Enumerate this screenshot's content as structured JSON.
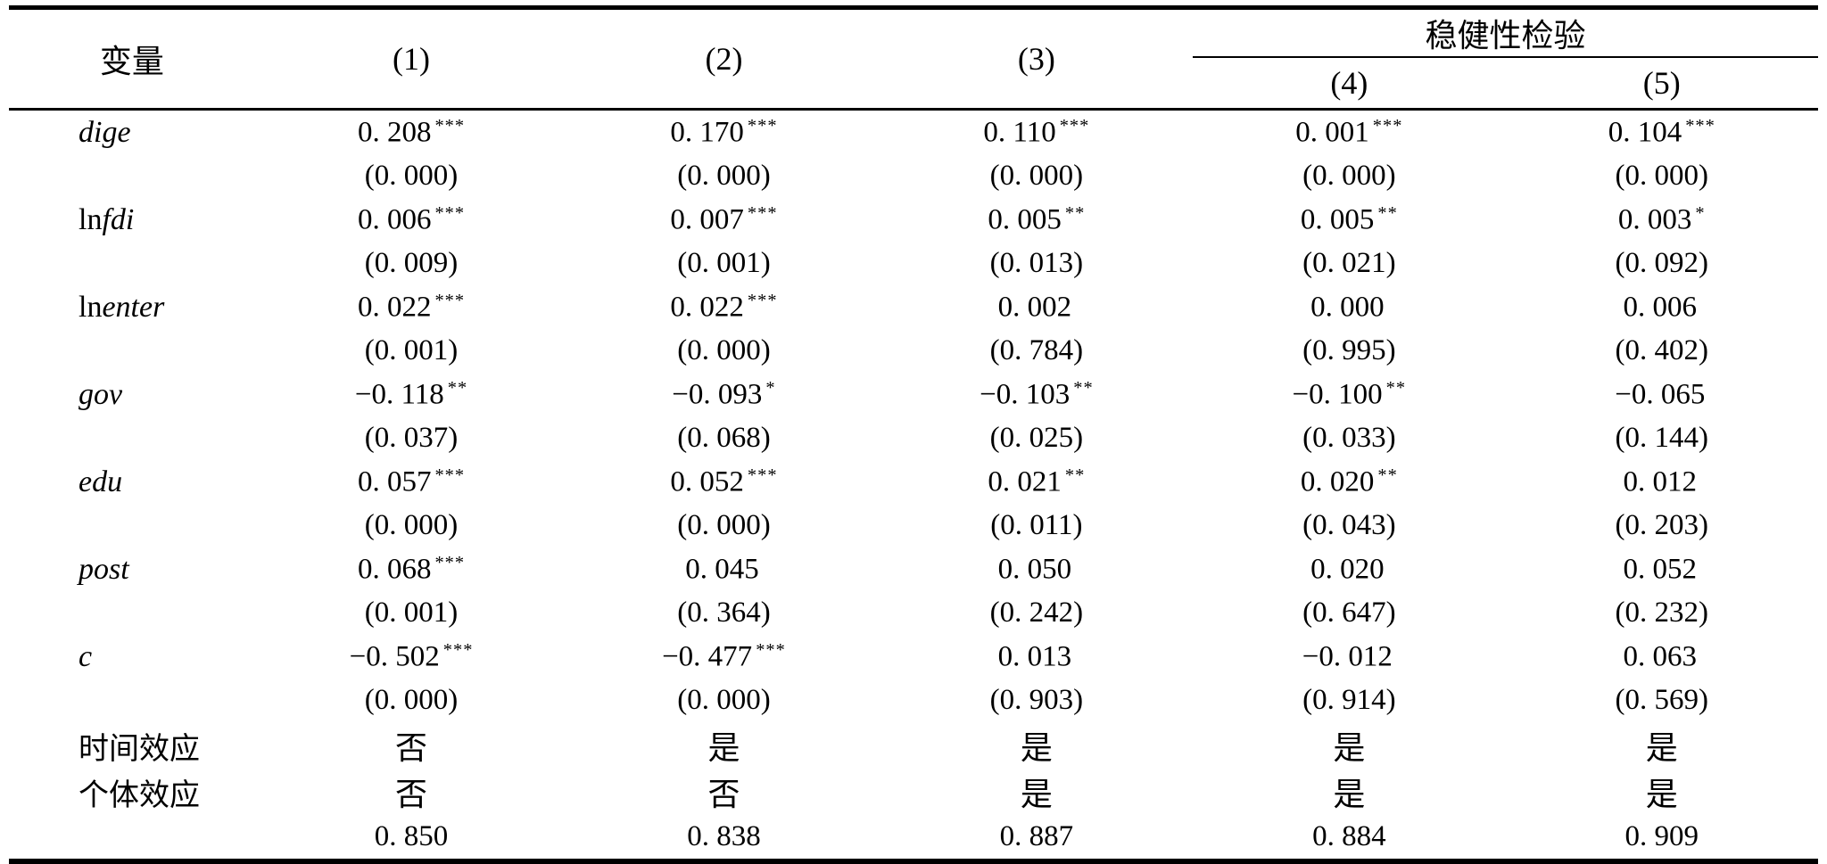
{
  "table": {
    "header": {
      "variable": "变量",
      "c1": "(1)",
      "c2": "(2)",
      "c3": "(3)",
      "robustness": "稳健性检验",
      "c4": "(4)",
      "c5": "(5)"
    },
    "colors": {
      "text": "#000000",
      "background": "#ffffff",
      "rule": "#000000"
    },
    "rows": [
      {
        "prefix": "",
        "name": "dige",
        "c1": "0. 208",
        "s1": "***",
        "p1": "(0. 000)",
        "c2": "0. 170",
        "s2": "***",
        "p2": "(0. 000)",
        "c3": "0. 110",
        "s3": "***",
        "p3": "(0. 000)",
        "c4": "0. 001",
        "s4": "***",
        "p4": "(0. 000)",
        "c5": "0. 104",
        "s5": "***",
        "p5": "(0. 000)"
      },
      {
        "prefix": "ln",
        "name": "fdi",
        "c1": "0. 006",
        "s1": "***",
        "p1": "(0. 009)",
        "c2": "0. 007",
        "s2": "***",
        "p2": "(0. 001)",
        "c3": "0. 005",
        "s3": "**",
        "p3": "(0. 013)",
        "c4": "0. 005",
        "s4": "**",
        "p4": "(0. 021)",
        "c5": "0. 003",
        "s5": "*",
        "p5": "(0. 092)"
      },
      {
        "prefix": "ln",
        "name": "enter",
        "c1": "0. 022",
        "s1": "***",
        "p1": "(0. 001)",
        "c2": "0. 022",
        "s2": "***",
        "p2": "(0. 000)",
        "c3": "0. 002",
        "s3": "",
        "p3": "(0. 784)",
        "c4": "0. 000",
        "s4": "",
        "p4": "(0. 995)",
        "c5": "0. 006",
        "s5": "",
        "p5": "(0. 402)"
      },
      {
        "prefix": "",
        "name": "gov",
        "c1": "−0. 118",
        "s1": "**",
        "p1": "(0. 037)",
        "c2": "−0. 093",
        "s2": "*",
        "p2": "(0. 068)",
        "c3": "−0. 103",
        "s3": "**",
        "p3": "(0. 025)",
        "c4": "−0. 100",
        "s4": "**",
        "p4": "(0. 033)",
        "c5": "−0. 065",
        "s5": "",
        "p5": "(0. 144)"
      },
      {
        "prefix": "",
        "name": "edu",
        "c1": "0. 057",
        "s1": "***",
        "p1": "(0. 000)",
        "c2": "0. 052",
        "s2": "***",
        "p2": "(0. 000)",
        "c3": "0. 021",
        "s3": "**",
        "p3": "(0. 011)",
        "c4": "0. 020",
        "s4": "**",
        "p4": "(0. 043)",
        "c5": "0. 012",
        "s5": "",
        "p5": "(0. 203)"
      },
      {
        "prefix": "",
        "name": "post",
        "c1": "0. 068",
        "s1": "***",
        "p1": "(0. 001)",
        "c2": "0. 045",
        "s2": "",
        "p2": "(0. 364)",
        "c3": "0. 050",
        "s3": "",
        "p3": "(0. 242)",
        "c4": "0. 020",
        "s4": "",
        "p4": "(0. 647)",
        "c5": "0. 052",
        "s5": "",
        "p5": "(0. 232)"
      },
      {
        "prefix": "",
        "name": "c",
        "c1": "−0. 502",
        "s1": "***",
        "p1": "(0. 000)",
        "c2": "−0. 477",
        "s2": "***",
        "p2": "(0. 000)",
        "c3": "0. 013",
        "s3": "",
        "p3": "(0. 903)",
        "c4": "−0. 012",
        "s4": "",
        "p4": "(0. 914)",
        "c5": "0. 063",
        "s5": "",
        "p5": "(0. 569)"
      }
    ],
    "effects": [
      {
        "label": "时间效应",
        "v1": "否",
        "v2": "是",
        "v3": "是",
        "v4": "是",
        "v5": "是"
      },
      {
        "label": "个体效应",
        "v1": "否",
        "v2": "否",
        "v3": "是",
        "v4": "是",
        "v5": "是"
      }
    ],
    "r2": {
      "label": "",
      "v1": "0. 850",
      "v2": "0. 838",
      "v3": "0. 887",
      "v4": "0. 884",
      "v5": "0. 909"
    }
  }
}
